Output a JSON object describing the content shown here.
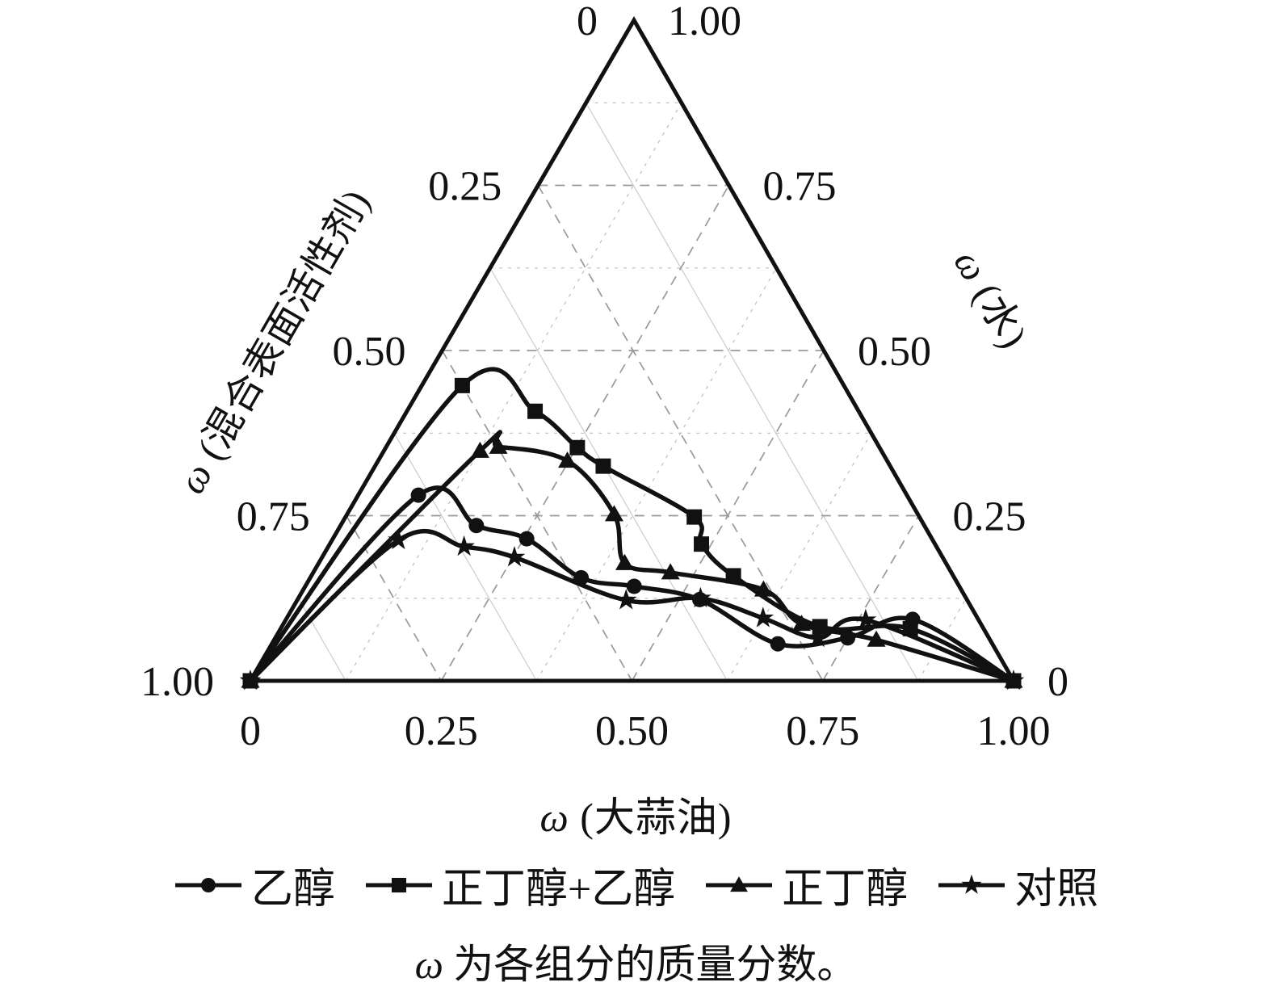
{
  "figure": {
    "caption": "ω 为各组分的质量分数。",
    "colors": {
      "line": "#111111",
      "grid_major": "#999999",
      "grid_minor_dashed": "#bdbdbd",
      "grid_minor_solid": "#cccccc",
      "background": "#ffffff"
    }
  },
  "chart_data": {
    "type": "line",
    "subtype": "ternary-phase-diagram",
    "title": "",
    "axes": {
      "bottom": {
        "label": "ω (大蒜油)",
        "ticks": [
          0,
          0.25,
          0.5,
          0.75,
          1.0
        ],
        "tick_labels": [
          "0",
          "0.25",
          "0.50",
          "0.75",
          "1.00"
        ],
        "direction": "0 at bottom-left vertex, 1.00 at bottom-right vertex"
      },
      "left": {
        "label": "ω (混合表面活性剂)",
        "ticks": [
          0,
          0.25,
          0.5,
          0.75,
          1.0
        ],
        "tick_labels": [
          "0",
          "0.25",
          "0.50",
          "0.75",
          "1.00"
        ],
        "direction": "0 at top apex, 1.00 at bottom-left vertex"
      },
      "right": {
        "label": "ω (水)",
        "ticks": [
          1.0,
          0.75,
          0.5,
          0.25,
          0
        ],
        "tick_labels": [
          "1.00",
          "0.75",
          "0.50",
          "0.25",
          "0"
        ],
        "direction": "1.00 at top apex, 0 at bottom-right vertex"
      }
    },
    "grid": {
      "major": [
        0.25,
        0.5,
        0.75
      ],
      "minor": [
        0.125,
        0.375,
        0.625,
        0.875
      ],
      "major_style": "dashed",
      "minor_style": "fine-dashed / thin-solid"
    },
    "point_order": [
      "oil",
      "surfactant",
      "water"
    ],
    "legend_position": "bottom",
    "series": [
      {
        "id": "ethanol",
        "name": "乙醇",
        "marker": "circle",
        "points": [
          [
            0,
            1,
            0
          ],
          [
            0.079,
            0.64,
            0.281
          ],
          [
            0.178,
            0.587,
            0.235
          ],
          [
            0.254,
            0.531,
            0.215
          ],
          [
            0.355,
            0.489,
            0.156
          ],
          [
            0.431,
            0.426,
            0.143
          ],
          [
            0.527,
            0.35,
            0.123
          ],
          [
            0.663,
            0.281,
            0.056
          ],
          [
            0.75,
            0.185,
            0.065
          ],
          [
            0.821,
            0.086,
            0.093
          ],
          [
            1,
            0,
            0
          ]
        ]
      },
      {
        "id": "butanol-ethanol",
        "name": "正丁醇+乙醇",
        "marker": "square",
        "points": [
          [
            0,
            1,
            0
          ],
          [
            0.053,
            0.5,
            0.447
          ],
          [
            0.168,
            0.424,
            0.408
          ],
          [
            0.251,
            0.396,
            0.353
          ],
          [
            0.299,
            0.376,
            0.325
          ],
          [
            0.457,
            0.295,
            0.248
          ],
          [
            0.487,
            0.306,
            0.207
          ],
          [
            0.553,
            0.288,
            0.159
          ],
          [
            0.705,
            0.213,
            0.082
          ],
          [
            0.825,
            0.096,
            0.079
          ],
          [
            1,
            0,
            0
          ]
        ]
      },
      {
        "id": "butanol",
        "name": "正丁醇",
        "marker": "triangle",
        "points": [
          [
            0,
            1,
            0
          ],
          [
            0.126,
            0.526,
            0.348
          ],
          [
            0.147,
            0.499,
            0.354
          ],
          [
            0.248,
            0.419,
            0.333
          ],
          [
            0.35,
            0.398,
            0.252
          ],
          [
            0.401,
            0.421,
            0.178
          ],
          [
            0.468,
            0.368,
            0.164
          ],
          [
            0.603,
            0.259,
            0.138
          ],
          [
            0.679,
            0.235,
            0.086
          ],
          [
            0.789,
            0.149,
            0.062
          ],
          [
            1,
            0,
            0
          ]
        ]
      },
      {
        "id": "control",
        "name": "对照",
        "marker": "star",
        "points": [
          [
            0,
            1,
            0
          ],
          [
            0.087,
            0.7,
            0.213
          ],
          [
            0.178,
            0.619,
            0.203
          ],
          [
            0.252,
            0.561,
            0.187
          ],
          [
            0.431,
            0.447,
            0.122
          ],
          [
            0.527,
            0.348,
            0.125
          ],
          [
            0.624,
            0.281,
            0.095
          ],
          [
            0.711,
            0.224,
            0.065
          ],
          [
            0.76,
            0.148,
            0.092
          ],
          [
            1,
            0,
            0
          ]
        ]
      }
    ]
  }
}
